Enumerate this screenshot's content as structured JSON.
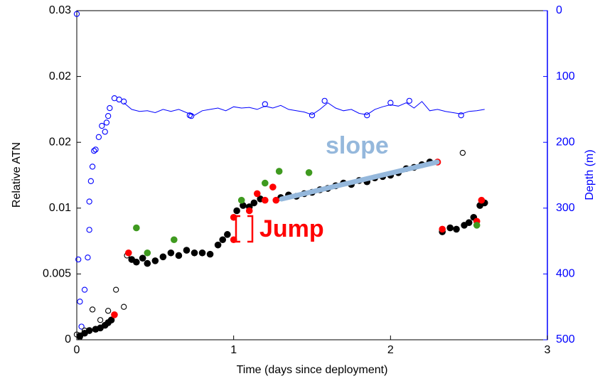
{
  "chart_data": {
    "type": "scatter",
    "xlabel": "Time (days since deployment)",
    "ylabel": "Relative ATN",
    "y2label": "Depth (m)",
    "annotations": [
      "slope",
      "Jump"
    ],
    "xlim": [
      0,
      3
    ],
    "xticks": [
      0,
      1,
      2,
      3
    ],
    "ylim": [
      0,
      0.025
    ],
    "yticks": [
      0,
      0.005,
      0.01,
      {
        "value": 0.015,
        "label": "0.02"
      },
      0.02,
      {
        "value": 0.025,
        "label": "0.03"
      }
    ],
    "y2lim": [
      0,
      500
    ],
    "y2ticks": [
      0,
      100,
      200,
      300,
      400,
      500
    ],
    "y2_inverted": true,
    "y2color": "#0000ff",
    "series": [
      {
        "color": "#0000ff",
        "axis": "y2",
        "marker": "none",
        "line": true,
        "x": [
          0.3,
          0.35,
          0.4,
          0.45,
          0.5,
          0.55,
          0.6,
          0.65,
          0.7,
          0.75,
          0.8,
          0.85,
          0.9,
          0.95,
          1.0,
          1.05,
          1.1,
          1.15,
          1.2,
          1.25,
          1.3,
          1.35,
          1.4,
          1.45,
          1.5,
          1.55,
          1.6,
          1.65,
          1.7,
          1.75,
          1.8,
          1.85,
          1.9,
          1.95,
          2.0,
          2.05,
          2.1,
          2.15,
          2.2,
          2.25,
          2.3,
          2.35,
          2.4,
          2.45,
          2.5,
          2.55,
          2.6
        ],
        "values": [
          140,
          150,
          153,
          152,
          155,
          150,
          153,
          150,
          155,
          159,
          152,
          150,
          148,
          152,
          146,
          148,
          147,
          150,
          145,
          148,
          144,
          150,
          152,
          154,
          158,
          150,
          140,
          148,
          152,
          150,
          156,
          158,
          150,
          146,
          143,
          145,
          140,
          148,
          138,
          152,
          150,
          153,
          155,
          157,
          153,
          152,
          150
        ]
      },
      {
        "color": "#0000ff",
        "axis": "y2",
        "marker": "open",
        "line": false,
        "x": [
          0.0,
          0.01,
          0.02,
          0.03,
          0.05,
          0.07,
          0.08,
          0.08,
          0.09,
          0.1,
          0.11,
          0.12,
          0.14,
          0.16,
          0.18,
          0.19,
          0.2,
          0.21,
          0.24,
          0.27,
          0.3,
          0.72,
          0.73,
          1.2,
          1.5,
          1.58,
          1.85,
          2.0,
          2.12,
          2.45
        ],
        "values": [
          5,
          378,
          442,
          480,
          424,
          375,
          333,
          290,
          259,
          237,
          213,
          211,
          192,
          175,
          184,
          170,
          160,
          148,
          133,
          135,
          138,
          159,
          160,
          142,
          159,
          137,
          159,
          140,
          137,
          159
        ]
      },
      {
        "color": "#000000",
        "marker": "open",
        "line": false,
        "x": [
          0.0,
          0.02,
          0.05,
          0.1,
          0.15,
          0.2,
          0.25,
          0.3,
          0.32,
          2.46
        ],
        "values": [
          0.0004,
          0.0002,
          0.0007,
          0.0023,
          0.0015,
          0.0022,
          0.0038,
          0.0025,
          0.0064,
          0.0142
        ]
      },
      {
        "color": "#000000",
        "marker": "filled",
        "line": false,
        "x": [
          0.02,
          0.05,
          0.08,
          0.12,
          0.15,
          0.18,
          0.2,
          0.22,
          0.35,
          0.38,
          0.42,
          0.45,
          0.5,
          0.55,
          0.6,
          0.65,
          0.7,
          0.75,
          0.8,
          0.85,
          0.9,
          0.93,
          0.96,
          1.02,
          1.06,
          1.1,
          1.13,
          1.17,
          1.3,
          1.35,
          1.4,
          1.45,
          1.5,
          1.55,
          1.6,
          1.65,
          1.7,
          1.75,
          1.8,
          1.85,
          1.9,
          1.95,
          2.0,
          2.05,
          2.1,
          2.15,
          2.2,
          2.25,
          2.33,
          2.38,
          2.42,
          2.47,
          2.5,
          2.53,
          2.57,
          2.6
        ],
        "values": [
          0.0003,
          0.0005,
          0.0007,
          0.0008,
          0.0009,
          0.0011,
          0.0013,
          0.0015,
          0.0061,
          0.0059,
          0.0062,
          0.0058,
          0.006,
          0.0063,
          0.0066,
          0.0064,
          0.0068,
          0.0066,
          0.0066,
          0.0065,
          0.0072,
          0.0076,
          0.008,
          0.0098,
          0.0102,
          0.0101,
          0.0104,
          0.0107,
          0.0108,
          0.011,
          0.0109,
          0.0111,
          0.0112,
          0.0114,
          0.0115,
          0.0117,
          0.0119,
          0.0118,
          0.0121,
          0.012,
          0.0123,
          0.0124,
          0.0125,
          0.0127,
          0.013,
          0.0131,
          0.0133,
          0.0135,
          0.0082,
          0.0085,
          0.0084,
          0.0087,
          0.0089,
          0.0093,
          0.0102,
          0.0104
        ]
      },
      {
        "color": "#ff0000",
        "marker": "filled",
        "line": false,
        "x": [
          0.24,
          0.33,
          1.0,
          1.0,
          1.1,
          1.15,
          1.2,
          1.25,
          1.27,
          2.3,
          2.33,
          2.55,
          2.58
        ],
        "values": [
          0.0019,
          0.0066,
          0.0076,
          0.0093,
          0.0098,
          0.0111,
          0.0106,
          0.0116,
          0.0106,
          0.0135,
          0.0084,
          0.009,
          0.0106
        ]
      },
      {
        "color": "#3f9a1f",
        "marker": "filled",
        "line": false,
        "x": [
          0.38,
          0.45,
          0.62,
          1.05,
          1.2,
          1.29,
          1.48,
          2.55
        ],
        "values": [
          0.0085,
          0.0066,
          0.0076,
          0.0106,
          0.0119,
          0.0128,
          0.0127,
          0.0087
        ]
      }
    ]
  }
}
